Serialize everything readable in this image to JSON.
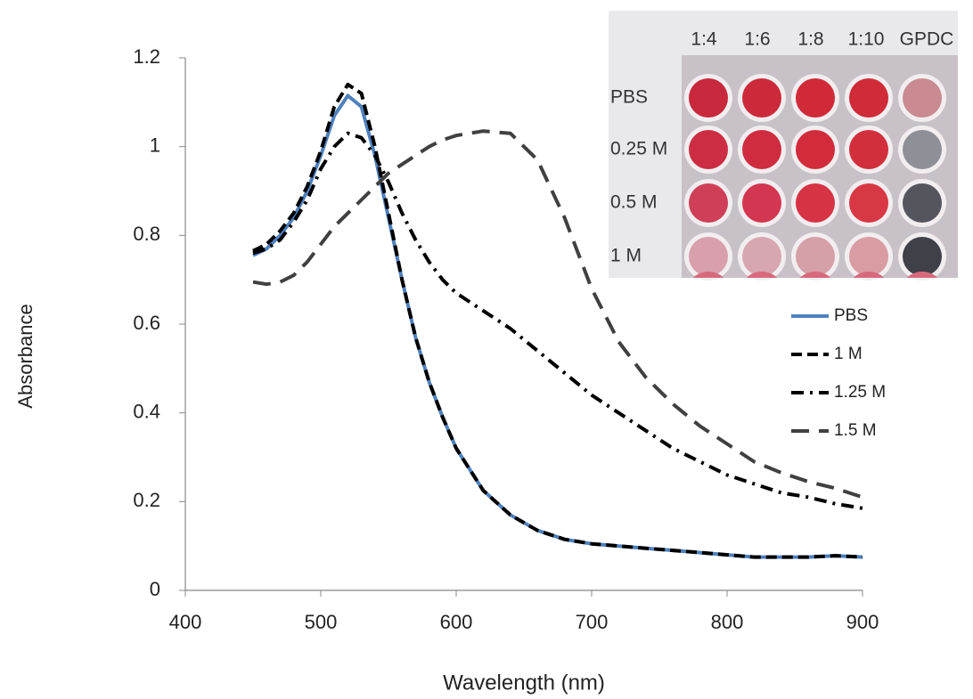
{
  "chart_data": {
    "type": "line",
    "y_label": "Absorbance",
    "x_label": "Wavelength (nm)",
    "xlim": [
      400,
      900
    ],
    "xticks": [
      400,
      500,
      600,
      700,
      800,
      900
    ],
    "ylim": [
      0,
      1.2
    ],
    "yticks": [
      0,
      0.2,
      0.4,
      0.6,
      0.8,
      1,
      1.2
    ],
    "grid": false,
    "legend": "right",
    "x": [
      450,
      460,
      470,
      480,
      490,
      500,
      510,
      520,
      530,
      540,
      550,
      560,
      570,
      580,
      590,
      600,
      620,
      640,
      660,
      680,
      700,
      720,
      740,
      760,
      780,
      800,
      820,
      840,
      860,
      880,
      900
    ],
    "series": [
      {
        "name": "PBS",
        "color": "#4f81bd",
        "line_style": "solid",
        "values": [
          0.755,
          0.77,
          0.8,
          0.84,
          0.9,
          0.98,
          1.07,
          1.115,
          1.09,
          0.98,
          0.84,
          0.7,
          0.57,
          0.47,
          0.39,
          0.32,
          0.225,
          0.17,
          0.135,
          0.115,
          0.105,
          0.1,
          0.095,
          0.09,
          0.085,
          0.08,
          0.075,
          0.075,
          0.075,
          0.078,
          0.075
        ]
      },
      {
        "name": "1 M",
        "color": "#000000",
        "line_style": "dashed",
        "values": [
          0.765,
          0.78,
          0.81,
          0.85,
          0.91,
          0.99,
          1.09,
          1.14,
          1.12,
          1.0,
          0.85,
          0.7,
          0.57,
          0.47,
          0.39,
          0.32,
          0.225,
          0.17,
          0.135,
          0.115,
          0.105,
          0.1,
          0.095,
          0.09,
          0.085,
          0.08,
          0.075,
          0.075,
          0.075,
          0.078,
          0.075
        ]
      },
      {
        "name": "1.25 M",
        "color": "#000000",
        "line_style": "dashdot",
        "values": [
          0.76,
          0.77,
          0.79,
          0.83,
          0.88,
          0.95,
          1.0,
          1.03,
          1.02,
          0.98,
          0.92,
          0.85,
          0.79,
          0.74,
          0.7,
          0.67,
          0.63,
          0.59,
          0.54,
          0.49,
          0.44,
          0.4,
          0.36,
          0.32,
          0.29,
          0.26,
          0.24,
          0.22,
          0.21,
          0.195,
          0.185
        ]
      },
      {
        "name": "1.5 M",
        "color": "#404040",
        "line_style": "longdash",
        "values": [
          0.695,
          0.69,
          0.695,
          0.71,
          0.74,
          0.78,
          0.82,
          0.85,
          0.88,
          0.91,
          0.94,
          0.96,
          0.98,
          1.0,
          1.015,
          1.025,
          1.035,
          1.03,
          0.97,
          0.84,
          0.68,
          0.56,
          0.48,
          0.42,
          0.37,
          0.33,
          0.29,
          0.265,
          0.245,
          0.23,
          0.21
        ]
      }
    ],
    "inset_columns": [
      "1:4",
      "1:6",
      "1:8",
      "1:10",
      "GPDC"
    ],
    "inset_rows": [
      "PBS",
      "0.25 M",
      "0.5 M",
      "1 M"
    ]
  }
}
